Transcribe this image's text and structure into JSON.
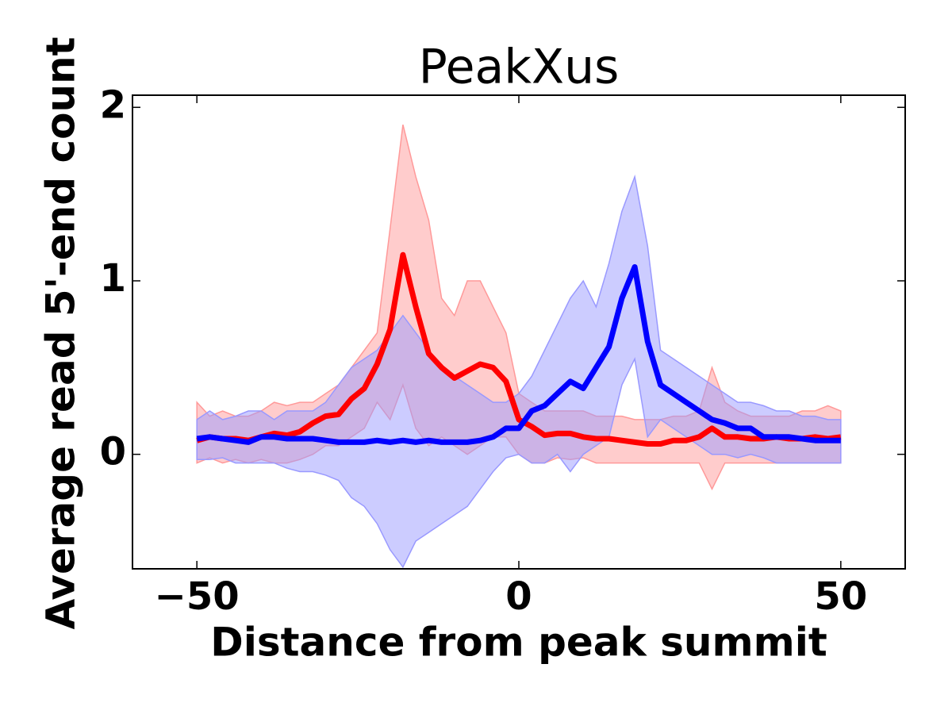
{
  "chart_data": {
    "type": "line",
    "title": "PeakXus",
    "x_label": "Distance from peak summit",
    "y_label": "Average read 5'-end count",
    "xlim": [
      -60,
      60
    ],
    "ylim": [
      -0.66,
      2.07
    ],
    "xticks": [
      {
        "value": -50,
        "label": "−50"
      },
      0,
      50
    ],
    "yticks": [
      0,
      1,
      2
    ],
    "x": [
      -50,
      -48,
      -46,
      -44,
      -42,
      -40,
      -38,
      -36,
      -34,
      -32,
      -30,
      -28,
      -26,
      -24,
      -22,
      -20,
      -18,
      -16,
      -14,
      -12,
      -10,
      -8,
      -6,
      -4,
      -2,
      0,
      2,
      4,
      6,
      8,
      10,
      12,
      14,
      16,
      18,
      20,
      22,
      24,
      26,
      28,
      30,
      32,
      34,
      36,
      38,
      40,
      42,
      44,
      46,
      48,
      50
    ],
    "series": [
      {
        "color": "#ff0000",
        "band_color": "#ff9999",
        "values": [
          0.08,
          0.1,
          0.09,
          0.09,
          0.08,
          0.1,
          0.12,
          0.11,
          0.13,
          0.18,
          0.22,
          0.23,
          0.32,
          0.38,
          0.52,
          0.72,
          1.15,
          0.85,
          0.58,
          0.5,
          0.44,
          0.48,
          0.52,
          0.5,
          0.42,
          0.2,
          0.16,
          0.11,
          0.12,
          0.12,
          0.1,
          0.09,
          0.09,
          0.08,
          0.07,
          0.06,
          0.06,
          0.08,
          0.08,
          0.1,
          0.15,
          0.1,
          0.1,
          0.09,
          0.09,
          0.1,
          0.09,
          0.09,
          0.1,
          0.09,
          0.1
        ],
        "upper": [
          0.3,
          0.22,
          0.25,
          0.22,
          0.22,
          0.25,
          0.3,
          0.28,
          0.3,
          0.3,
          0.35,
          0.4,
          0.5,
          0.6,
          0.7,
          1.3,
          1.9,
          1.6,
          1.35,
          0.9,
          0.8,
          1.0,
          1.0,
          0.85,
          0.7,
          0.35,
          0.3,
          0.25,
          0.25,
          0.25,
          0.25,
          0.22,
          0.22,
          0.22,
          0.2,
          0.2,
          0.2,
          0.22,
          0.22,
          0.25,
          0.5,
          0.3,
          0.25,
          0.22,
          0.22,
          0.22,
          0.22,
          0.25,
          0.25,
          0.28,
          0.25
        ],
        "lower": [
          -0.05,
          -0.02,
          -0.05,
          -0.03,
          -0.05,
          -0.03,
          -0.05,
          -0.05,
          -0.03,
          0,
          0.05,
          0.05,
          0.1,
          0.15,
          0.3,
          0.2,
          0.4,
          0.15,
          0.05,
          0.1,
          0.05,
          0,
          0.05,
          0.1,
          0.1,
          0,
          -0.05,
          -0.05,
          -0.02,
          -0.03,
          -0.02,
          -0.05,
          -0.05,
          -0.05,
          -0.05,
          -0.05,
          -0.05,
          -0.05,
          -0.05,
          -0.05,
          -0.2,
          -0.05,
          -0.05,
          -0.05,
          -0.05,
          -0.05,
          -0.05,
          -0.05,
          -0.05,
          -0.05,
          -0.05
        ]
      },
      {
        "color": "#0000ff",
        "band_color": "#9999ff",
        "values": [
          0.09,
          0.1,
          0.09,
          0.08,
          0.07,
          0.1,
          0.1,
          0.09,
          0.09,
          0.09,
          0.08,
          0.07,
          0.07,
          0.07,
          0.08,
          0.07,
          0.08,
          0.07,
          0.08,
          0.07,
          0.07,
          0.07,
          0.08,
          0.1,
          0.15,
          0.15,
          0.25,
          0.28,
          0.35,
          0.42,
          0.38,
          0.5,
          0.62,
          0.9,
          1.08,
          0.65,
          0.4,
          0.35,
          0.3,
          0.25,
          0.2,
          0.18,
          0.15,
          0.15,
          0.1,
          0.1,
          0.1,
          0.09,
          0.08,
          0.08,
          0.08
        ],
        "upper": [
          0.2,
          0.25,
          0.2,
          0.22,
          0.25,
          0.25,
          0.2,
          0.25,
          0.25,
          0.25,
          0.3,
          0.4,
          0.5,
          0.55,
          0.6,
          0.7,
          0.8,
          0.7,
          0.6,
          0.5,
          0.45,
          0.4,
          0.35,
          0.3,
          0.3,
          0.35,
          0.45,
          0.6,
          0.75,
          0.9,
          1.0,
          0.85,
          1.1,
          1.4,
          1.6,
          1.2,
          0.6,
          0.55,
          0.5,
          0.45,
          0.4,
          0.35,
          0.3,
          0.3,
          0.28,
          0.25,
          0.25,
          0.22,
          0.22,
          0.2,
          0.2
        ],
        "lower": [
          -0.03,
          -0.03,
          -0.02,
          -0.05,
          -0.05,
          -0.05,
          -0.05,
          -0.08,
          -0.1,
          -0.1,
          -0.12,
          -0.15,
          -0.25,
          -0.3,
          -0.4,
          -0.55,
          -0.65,
          -0.5,
          -0.45,
          -0.4,
          -0.35,
          -0.3,
          -0.2,
          -0.1,
          -0.02,
          0,
          -0.05,
          -0.05,
          0,
          -0.1,
          0,
          0.05,
          0.1,
          0.4,
          0.55,
          0.1,
          0.2,
          0.15,
          0.1,
          0.05,
          0,
          0,
          -0.02,
          0,
          -0.02,
          -0.05,
          -0.05,
          -0.05,
          -0.05,
          -0.05,
          -0.05
        ]
      }
    ]
  }
}
